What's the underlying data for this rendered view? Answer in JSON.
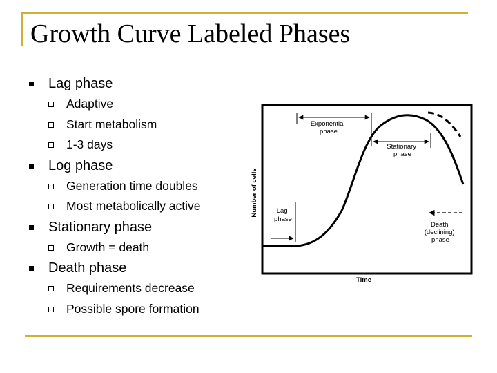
{
  "title": "Growth Curve Labeled Phases",
  "phases": [
    {
      "heading": "Lag phase",
      "items": [
        "Adaptive",
        "Start metabolism",
        "1-3 days"
      ]
    },
    {
      "heading": "Log phase",
      "items": [
        "Generation time doubles",
        "Most metabolically active"
      ]
    },
    {
      "heading": "Stationary phase",
      "items": [
        "Growth = death"
      ]
    },
    {
      "heading": "Death phase",
      "items": [
        "Requirements decrease",
        "Possible spore formation"
      ]
    }
  ],
  "figure": {
    "y_axis_label": "Number of cells",
    "x_axis_label": "Time",
    "labels": {
      "lag": [
        "Lag",
        "phase"
      ],
      "exponential": [
        "Exponential",
        "phase"
      ],
      "stationary": [
        "Stationary",
        "phase"
      ],
      "death": [
        "Death",
        "(declining)",
        "phase"
      ]
    }
  },
  "colors": {
    "frame": "#cdb235"
  }
}
